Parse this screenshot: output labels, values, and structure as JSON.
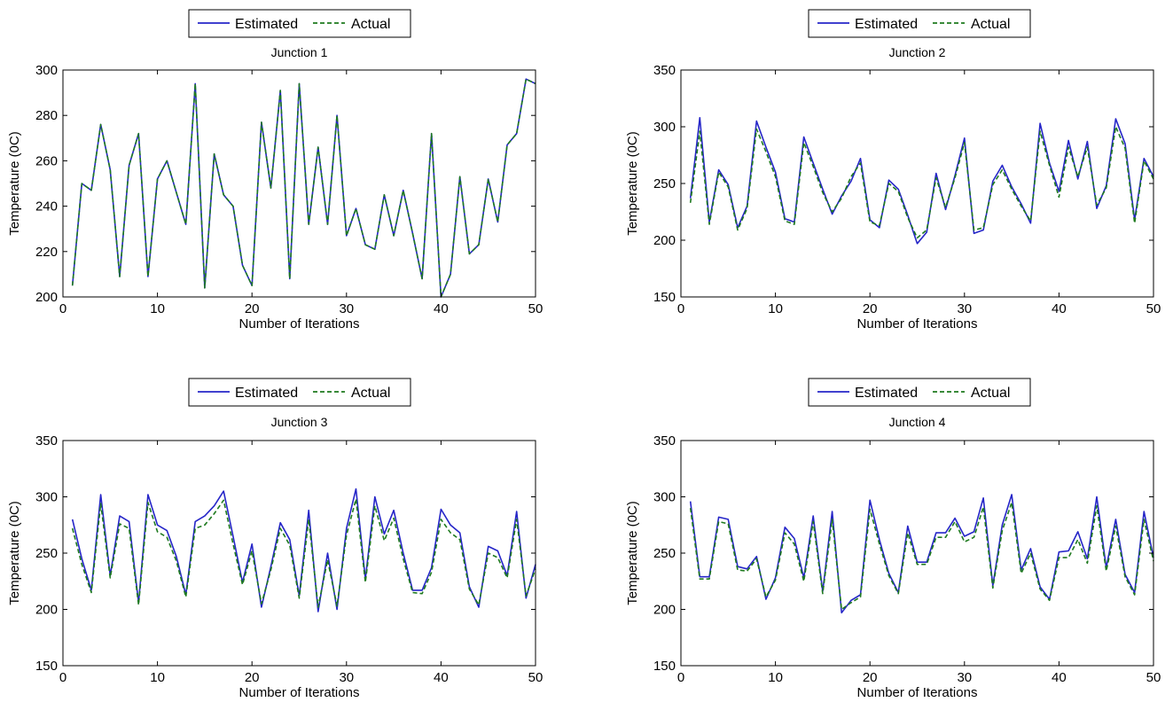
{
  "legend": {
    "estimated": "Estimated",
    "actual": "Actual"
  },
  "colors": {
    "estimated": "#2626c8",
    "actual": "#1f7a1f",
    "axis": "#000000"
  },
  "chart_data": [
    {
      "type": "line",
      "title": "Junction 1",
      "xlabel": "Number of Iterations",
      "ylabel": "Temperature (0C)",
      "xlim": [
        0,
        50
      ],
      "ylim": [
        200,
        300
      ],
      "xticks": [
        0,
        10,
        20,
        30,
        40,
        50
      ],
      "yticks": [
        200,
        220,
        240,
        260,
        280,
        300
      ],
      "legend_position": "top-center",
      "grid": false,
      "x": [
        1,
        2,
        3,
        4,
        5,
        6,
        7,
        8,
        9,
        10,
        11,
        12,
        13,
        14,
        15,
        16,
        17,
        18,
        19,
        20,
        21,
        22,
        23,
        24,
        25,
        26,
        27,
        28,
        29,
        30,
        31,
        32,
        33,
        34,
        35,
        36,
        37,
        38,
        39,
        40,
        41,
        42,
        43,
        44,
        45,
        46,
        47,
        48,
        49,
        50
      ],
      "series": [
        {
          "name": "Estimated",
          "style": "solid",
          "values": [
            205,
            250,
            247,
            276,
            256,
            209,
            258,
            272,
            209,
            252,
            260,
            246,
            232,
            294,
            204,
            263,
            245,
            240,
            214,
            205,
            277,
            248,
            291,
            208,
            294,
            232,
            266,
            232,
            280,
            227,
            239,
            223,
            221,
            245,
            227,
            247,
            228,
            208,
            272,
            200,
            210,
            253,
            219,
            223,
            252,
            233,
            267,
            272,
            296,
            294
          ]
        },
        {
          "name": "Actual",
          "style": "dashed",
          "values": [
            205,
            250,
            247,
            276,
            256,
            209,
            258,
            272,
            209,
            252,
            260,
            246,
            232,
            294,
            204,
            263,
            245,
            240,
            214,
            205,
            277,
            248,
            291,
            208,
            294,
            232,
            266,
            232,
            280,
            227,
            239,
            223,
            221,
            245,
            227,
            247,
            228,
            208,
            272,
            200,
            210,
            253,
            219,
            223,
            252,
            233,
            267,
            272,
            296,
            294
          ]
        }
      ]
    },
    {
      "type": "line",
      "title": "Junction 2",
      "xlabel": "Number of Iterations",
      "ylabel": "Temperature (0C)",
      "xlim": [
        0,
        50
      ],
      "ylim": [
        150,
        350
      ],
      "xticks": [
        0,
        10,
        20,
        30,
        40,
        50
      ],
      "yticks": [
        150,
        200,
        250,
        300,
        350
      ],
      "legend_position": "top-center",
      "grid": false,
      "x": [
        1,
        2,
        3,
        4,
        5,
        6,
        7,
        8,
        9,
        10,
        11,
        12,
        13,
        14,
        15,
        16,
        17,
        18,
        19,
        20,
        21,
        22,
        23,
        24,
        25,
        26,
        27,
        28,
        29,
        30,
        31,
        32,
        33,
        34,
        35,
        36,
        37,
        38,
        39,
        40,
        41,
        42,
        43,
        44,
        45,
        46,
        47,
        48,
        49,
        50
      ],
      "series": [
        {
          "name": "Estimated",
          "style": "solid",
          "values": [
            237,
            308,
            216,
            262,
            249,
            211,
            230,
            305,
            282,
            260,
            219,
            216,
            291,
            268,
            245,
            223,
            239,
            252,
            272,
            218,
            211,
            253,
            245,
            222,
            197,
            207,
            259,
            227,
            257,
            290,
            206,
            209,
            252,
            266,
            247,
            232,
            215,
            303,
            268,
            243,
            288,
            254,
            287,
            228,
            248,
            307,
            285,
            218,
            272,
            256
          ]
        },
        {
          "name": "Actual",
          "style": "dashed",
          "values": [
            233,
            296,
            214,
            260,
            247,
            209,
            228,
            298,
            278,
            256,
            217,
            214,
            286,
            265,
            242,
            225,
            237,
            256,
            268,
            216,
            213,
            250,
            243,
            220,
            202,
            209,
            255,
            229,
            255,
            286,
            209,
            211,
            249,
            262,
            245,
            230,
            217,
            296,
            266,
            238,
            282,
            256,
            282,
            231,
            246,
            300,
            281,
            215,
            270,
            254
          ]
        }
      ]
    },
    {
      "type": "line",
      "title": "Junction 3",
      "xlabel": "Number of Iterations",
      "ylabel": "Temperature (0C)",
      "xlim": [
        0,
        50
      ],
      "ylim": [
        150,
        350
      ],
      "xticks": [
        0,
        10,
        20,
        30,
        40,
        50
      ],
      "yticks": [
        150,
        200,
        250,
        300,
        350
      ],
      "legend_position": "top-center",
      "grid": false,
      "x": [
        1,
        2,
        3,
        4,
        5,
        6,
        7,
        8,
        9,
        10,
        11,
        12,
        13,
        14,
        15,
        16,
        17,
        18,
        19,
        20,
        21,
        22,
        23,
        24,
        25,
        26,
        27,
        28,
        29,
        30,
        31,
        32,
        33,
        34,
        35,
        36,
        37,
        38,
        39,
        40,
        41,
        42,
        43,
        44,
        45,
        46,
        47,
        48,
        49,
        50
      ],
      "series": [
        {
          "name": "Estimated",
          "style": "solid",
          "values": [
            280,
            245,
            217,
            302,
            230,
            283,
            278,
            206,
            302,
            275,
            270,
            247,
            213,
            278,
            283,
            292,
            305,
            265,
            224,
            258,
            202,
            238,
            277,
            262,
            212,
            288,
            198,
            250,
            200,
            272,
            307,
            227,
            300,
            267,
            288,
            250,
            217,
            217,
            237,
            289,
            275,
            268,
            220,
            202,
            256,
            252,
            230,
            287,
            210,
            240
          ]
        },
        {
          "name": "Actual",
          "style": "dashed",
          "values": [
            272,
            240,
            215,
            294,
            228,
            276,
            272,
            204,
            295,
            269,
            264,
            243,
            211,
            272,
            275,
            285,
            297,
            258,
            222,
            252,
            205,
            235,
            272,
            257,
            210,
            280,
            202,
            244,
            203,
            266,
            298,
            224,
            292,
            261,
            281,
            245,
            215,
            214,
            233,
            280,
            268,
            262,
            218,
            204,
            250,
            246,
            228,
            280,
            212,
            236
          ]
        }
      ]
    },
    {
      "type": "line",
      "title": "Junction 4",
      "xlabel": "Number of Iterations",
      "ylabel": "Temperature (0C)",
      "xlim": [
        0,
        50
      ],
      "ylim": [
        150,
        350
      ],
      "xticks": [
        0,
        10,
        20,
        30,
        40,
        50
      ],
      "yticks": [
        150,
        200,
        250,
        300,
        350
      ],
      "legend_position": "top-center",
      "grid": false,
      "x": [
        1,
        2,
        3,
        4,
        5,
        6,
        7,
        8,
        9,
        10,
        11,
        12,
        13,
        14,
        15,
        16,
        17,
        18,
        19,
        20,
        21,
        22,
        23,
        24,
        25,
        26,
        27,
        28,
        29,
        30,
        31,
        32,
        33,
        34,
        35,
        36,
        37,
        38,
        39,
        40,
        41,
        42,
        43,
        44,
        45,
        46,
        47,
        48,
        49,
        50
      ],
      "series": [
        {
          "name": "Estimated",
          "style": "solid",
          "values": [
            296,
            229,
            229,
            282,
            280,
            238,
            236,
            247,
            209,
            228,
            273,
            263,
            228,
            283,
            216,
            287,
            197,
            208,
            213,
            297,
            262,
            232,
            215,
            274,
            242,
            242,
            268,
            268,
            281,
            265,
            269,
            299,
            221,
            275,
            302,
            235,
            254,
            220,
            209,
            251,
            252,
            269,
            245,
            300,
            237,
            280,
            231,
            215,
            287,
            246
          ]
        },
        {
          "name": "Actual",
          "style": "dashed",
          "values": [
            290,
            227,
            227,
            278,
            276,
            235,
            234,
            245,
            211,
            226,
            268,
            258,
            225,
            278,
            214,
            280,
            200,
            206,
            211,
            289,
            258,
            230,
            214,
            268,
            240,
            240,
            264,
            264,
            278,
            260,
            264,
            291,
            219,
            270,
            295,
            232,
            250,
            218,
            208,
            246,
            246,
            262,
            241,
            292,
            234,
            274,
            229,
            213,
            280,
            243
          ]
        }
      ]
    }
  ]
}
